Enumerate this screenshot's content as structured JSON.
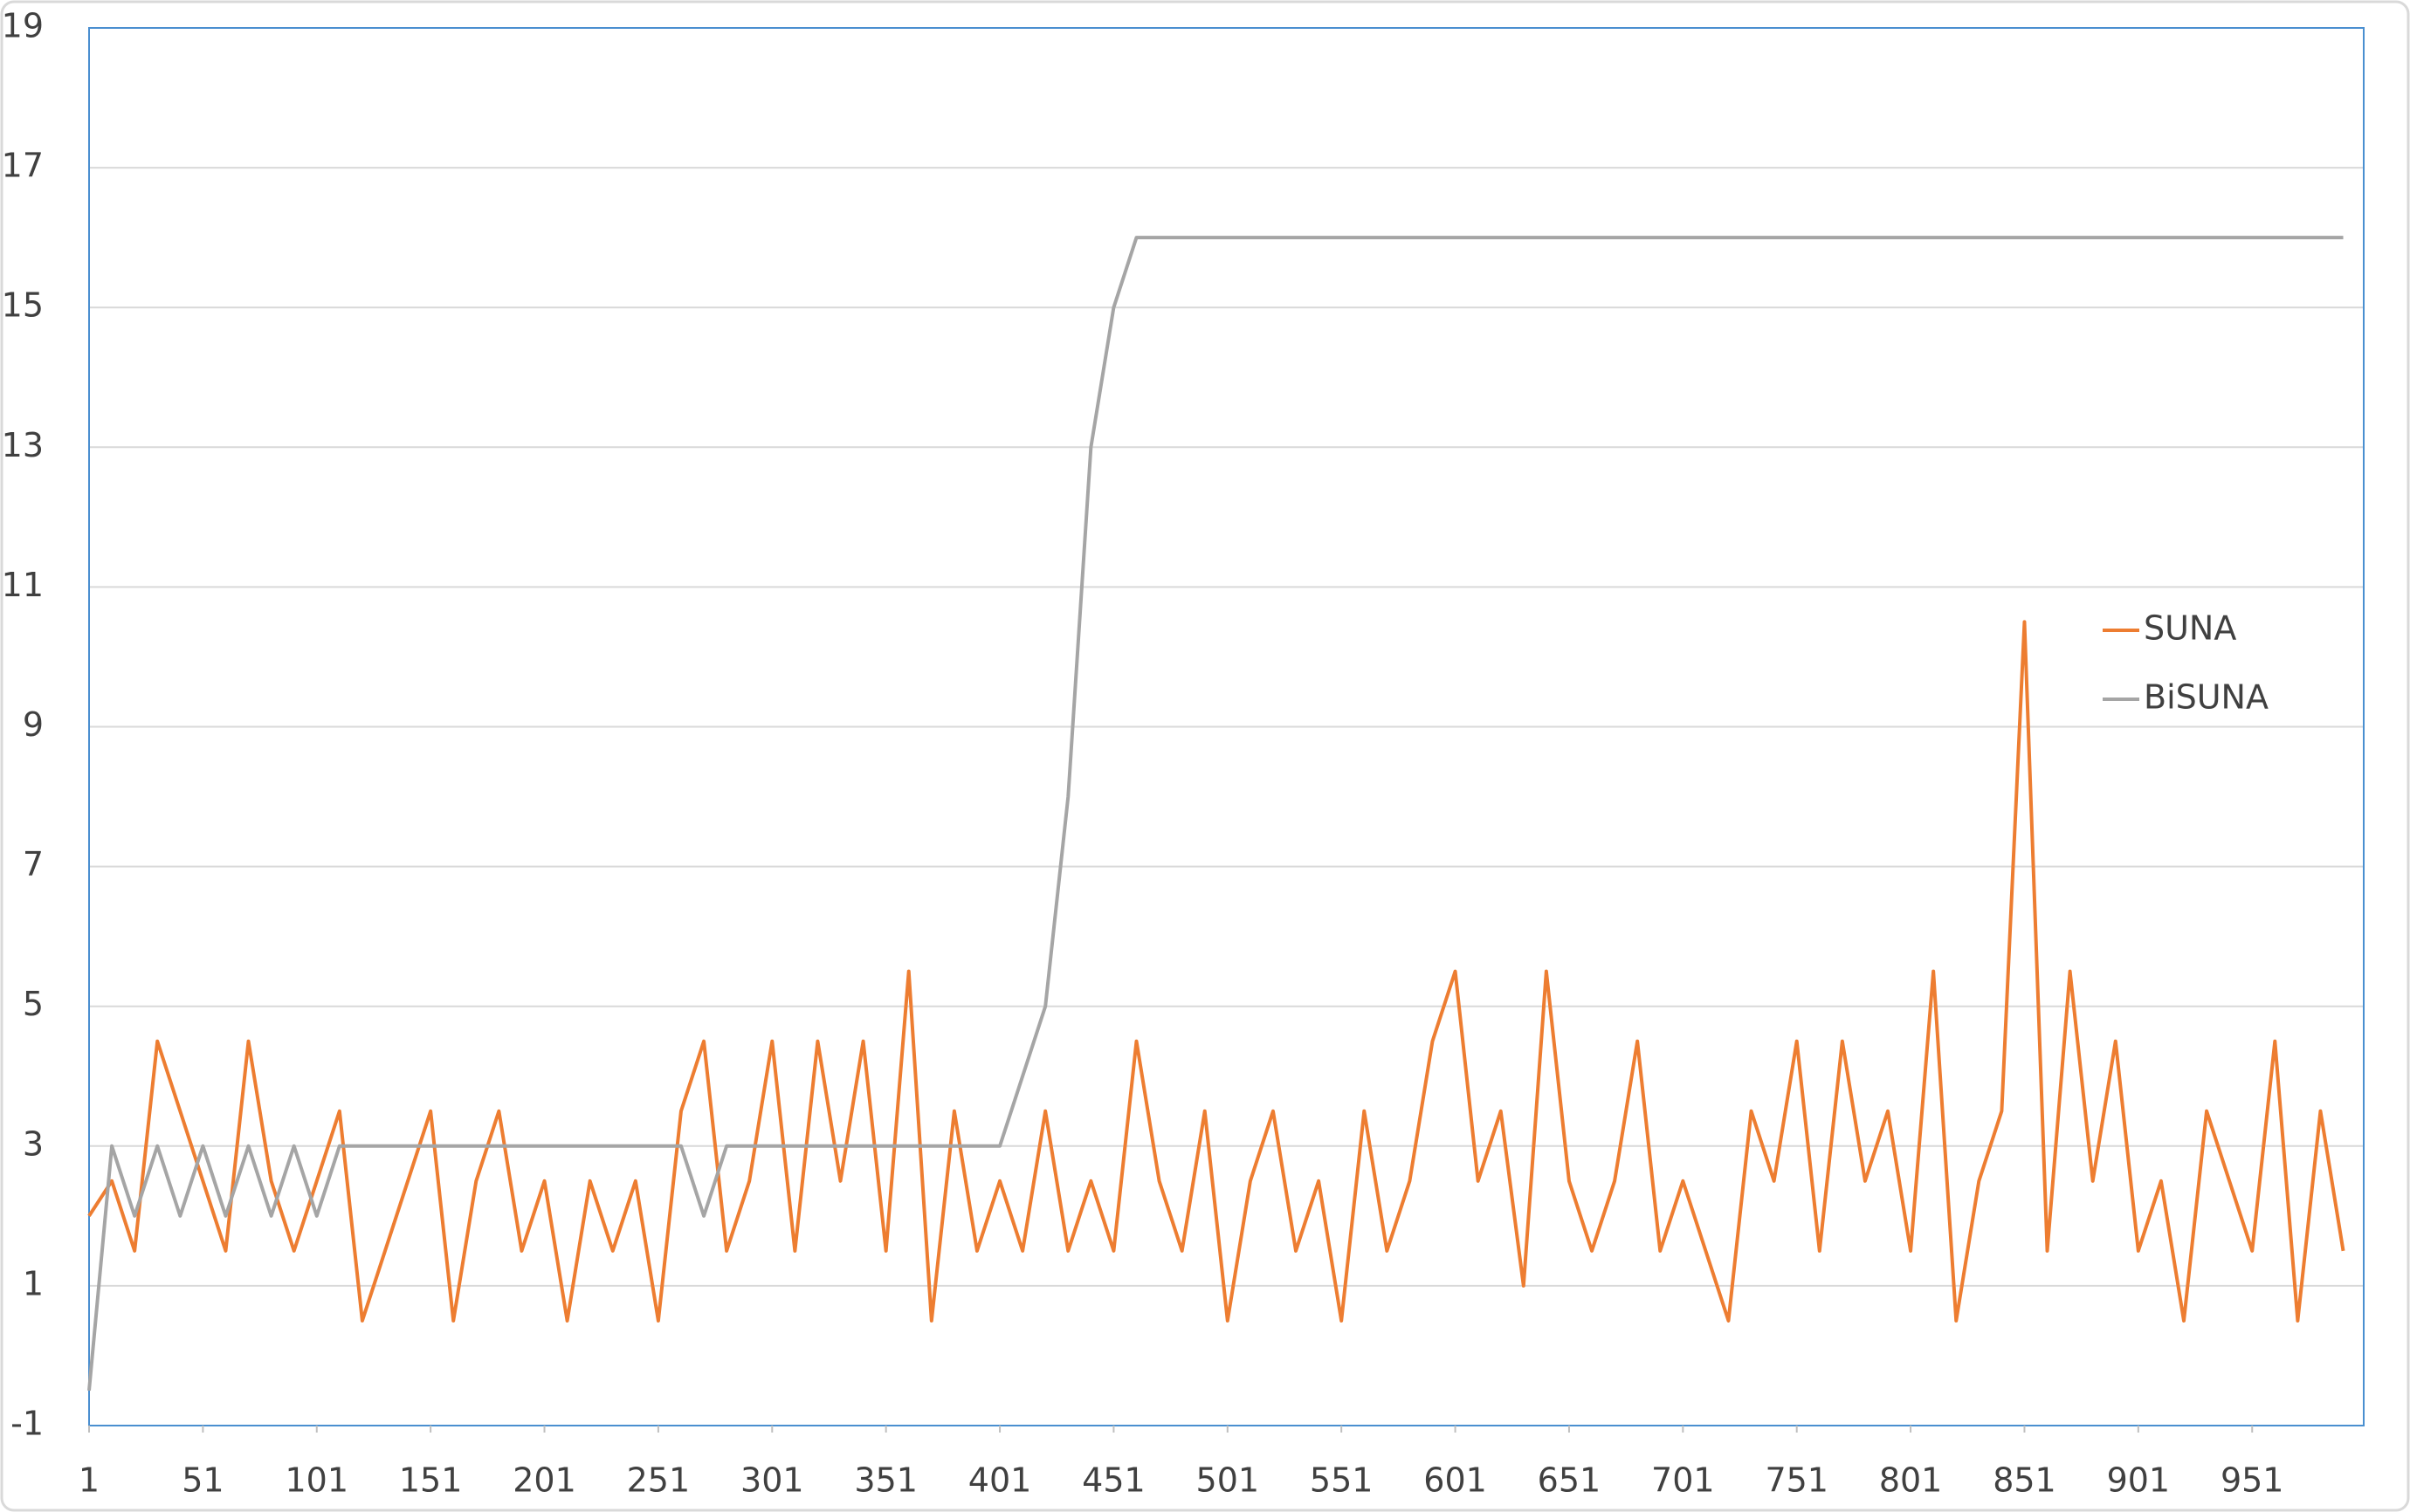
{
  "chart_data": {
    "type": "line",
    "x": [
      1,
      11,
      21,
      31,
      41,
      51,
      61,
      71,
      81,
      91,
      101,
      111,
      121,
      131,
      141,
      151,
      161,
      171,
      181,
      191,
      201,
      211,
      221,
      231,
      241,
      251,
      261,
      271,
      281,
      291,
      301,
      311,
      321,
      331,
      341,
      351,
      361,
      371,
      381,
      391,
      401,
      411,
      421,
      431,
      441,
      451,
      461,
      471,
      481,
      491,
      501,
      511,
      521,
      531,
      541,
      551,
      561,
      571,
      581,
      591,
      601,
      611,
      621,
      631,
      641,
      651,
      661,
      671,
      681,
      691,
      701,
      711,
      721,
      731,
      741,
      751,
      761,
      771,
      781,
      791,
      801,
      811,
      821,
      831,
      841,
      851,
      861,
      871,
      881,
      891,
      901,
      911,
      921,
      931,
      941,
      951,
      961,
      971,
      981,
      991
    ],
    "series": [
      {
        "name": "SUNA",
        "color": "#ed7d31",
        "values": [
          2,
          2.5,
          1.5,
          4.5,
          3.5,
          2.5,
          1.5,
          4.5,
          2.5,
          1.5,
          2.5,
          3.5,
          0.5,
          1.5,
          2.5,
          3.5,
          0.5,
          2.5,
          3.5,
          1.5,
          2.5,
          0.5,
          2.5,
          1.5,
          2.5,
          0.5,
          3.5,
          4.5,
          1.5,
          2.5,
          4.5,
          1.5,
          4.5,
          2.5,
          4.5,
          1.5,
          5.5,
          0.5,
          3.5,
          1.5,
          2.5,
          1.5,
          3.5,
          1.5,
          2.5,
          1.5,
          4.5,
          2.5,
          1.5,
          3.5,
          0.5,
          2.5,
          3.5,
          1.5,
          2.5,
          0.5,
          3.5,
          1.5,
          2.5,
          4.5,
          5.5,
          2.5,
          3.5,
          1,
          5.5,
          2.5,
          1.5,
          2.5,
          4.5,
          1.5,
          2.5,
          1.5,
          0.5,
          3.5,
          2.5,
          4.5,
          1.5,
          4.5,
          2.5,
          3.5,
          1.5,
          5.5,
          0.5,
          2.5,
          3.5,
          10.5,
          1.5,
          5.5,
          2.5,
          4.5,
          1.5,
          2.5,
          0.5,
          3.5,
          2.5,
          1.5,
          4.5,
          0.5,
          3.5,
          1.5
        ]
      },
      {
        "name": "BiSUNA",
        "color": "#a5a5a5",
        "values": [
          -0.5,
          3,
          2,
          3,
          2,
          3,
          2,
          3,
          2,
          3,
          2,
          3,
          3,
          3,
          3,
          3,
          3,
          3,
          3,
          3,
          3,
          3,
          3,
          3,
          3,
          3,
          3,
          2,
          3,
          3,
          3,
          3,
          3,
          3,
          3,
          3,
          3,
          3,
          3,
          3,
          3,
          4,
          5,
          8,
          13,
          15,
          16,
          16,
          16,
          16,
          16,
          16,
          16,
          16,
          16,
          16,
          16,
          16,
          16,
          16,
          16,
          16,
          16,
          16,
          16,
          16,
          16,
          16,
          16,
          16,
          16,
          16,
          16,
          16,
          16,
          16,
          16,
          16,
          16,
          16,
          16,
          16,
          16,
          16,
          16,
          16,
          16,
          16,
          16,
          16,
          16,
          16,
          16,
          16,
          16,
          16,
          16,
          16,
          16,
          16
        ]
      }
    ],
    "xlim": [
      1,
      1000
    ],
    "xticks": [
      1,
      51,
      101,
      151,
      201,
      251,
      301,
      351,
      401,
      451,
      501,
      551,
      601,
      651,
      701,
      751,
      801,
      851,
      901,
      951
    ],
    "ylim": [
      -1,
      19
    ],
    "yticks": [
      -1,
      1,
      3,
      5,
      7,
      9,
      11,
      13,
      15,
      17,
      19
    ],
    "grid": true,
    "legend": "right"
  }
}
